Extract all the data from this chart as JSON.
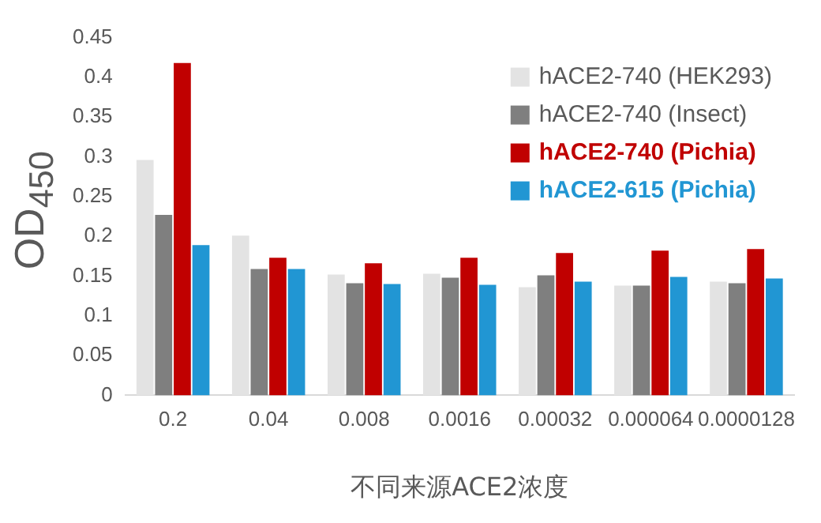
{
  "chart_data": {
    "type": "bar",
    "categories": [
      "0.2",
      "0.04",
      "0.008",
      "0.0016",
      "0.00032",
      "0.000064",
      "0.0000128"
    ],
    "series": [
      {
        "name": "hACE2-740 (HEK293)",
        "color": "#e3e3e3",
        "values": [
          0.296,
          0.201,
          0.152,
          0.153,
          0.136,
          0.138,
          0.143
        ]
      },
      {
        "name": "hACE2-740 (Insect)",
        "color": "#7f7f7f",
        "values": [
          0.227,
          0.159,
          0.141,
          0.148,
          0.151,
          0.138,
          0.141
        ]
      },
      {
        "name": "hACE2-740 (Pichia)",
        "color": "#c00000",
        "values": [
          0.418,
          0.173,
          0.166,
          0.173,
          0.179,
          0.182,
          0.184
        ]
      },
      {
        "name": "hACE2-615 (Pichia)",
        "color": "#2196d3",
        "values": [
          0.189,
          0.159,
          0.14,
          0.139,
          0.143,
          0.149,
          0.147
        ]
      }
    ],
    "xlabel": "不同来源ACE2浓度",
    "ylabel": "OD$_{450}$",
    "ylim": [
      0,
      0.45
    ],
    "yticks": [
      0,
      0.05,
      0.1,
      0.15,
      0.2,
      0.25,
      0.3,
      0.35,
      0.4,
      0.45
    ],
    "grid": false,
    "legend": "top right"
  }
}
